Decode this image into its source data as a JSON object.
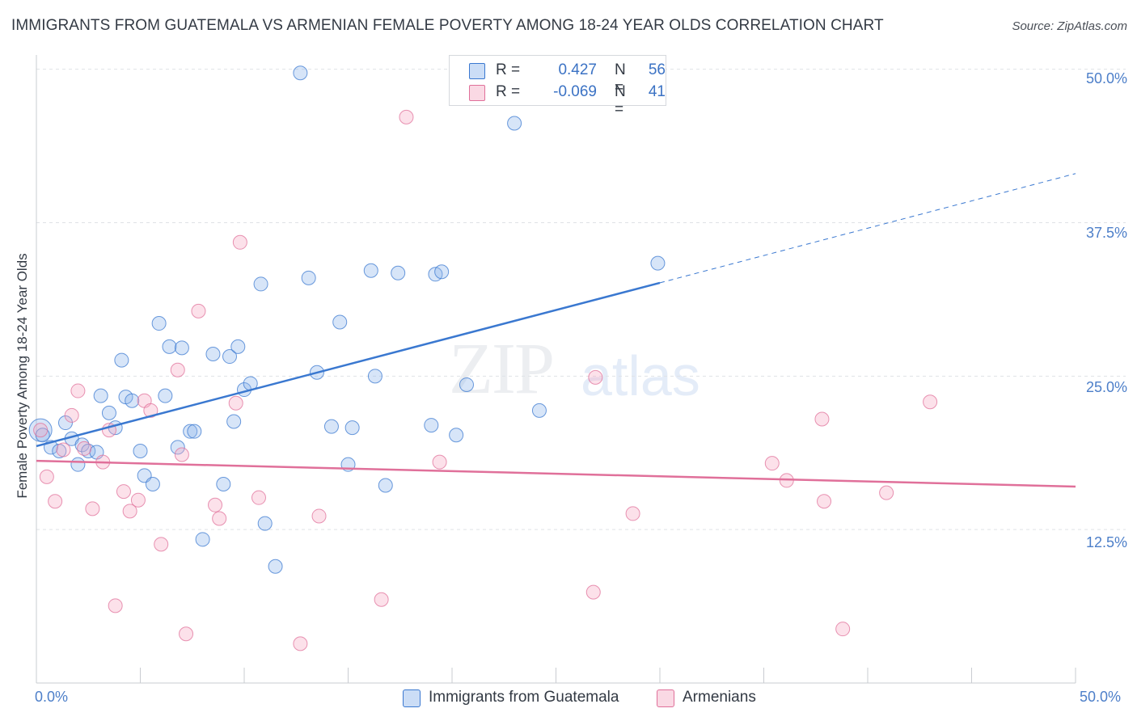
{
  "title": "IMMIGRANTS FROM GUATEMALA VS ARMENIAN FEMALE POVERTY AMONG 18-24 YEAR OLDS CORRELATION CHART",
  "source": "Source: ZipAtlas.com",
  "watermark": {
    "zip": "ZIP",
    "atlas": "atlas"
  },
  "legend_top": {
    "rows": [
      {
        "r_label": "R =",
        "r_value": "0.427",
        "n_label": "N =",
        "n_value": "56"
      },
      {
        "r_label": "R =",
        "r_value": "-0.069",
        "n_label": "N =",
        "n_value": "41"
      }
    ]
  },
  "legend_bottom": [
    "Immigrants from Guatemala",
    "Armenians"
  ],
  "chart_data": {
    "type": "scatter",
    "ylabel": "Female Poverty Among 18-24 Year Olds",
    "xlabel": "",
    "x_tick_labels": [
      "0.0%",
      "50.0%"
    ],
    "y_tick_labels": [
      "50.0%",
      "37.5%",
      "25.0%",
      "12.5%"
    ],
    "xlim": [
      0,
      50
    ],
    "ylim": [
      0,
      50.9
    ],
    "grid": true,
    "colors": {
      "blue": "#3a78d0",
      "pink": "#e0709a",
      "blue_fill": "rgba(140,180,235,0.35)",
      "pink_fill": "rgba(245,170,195,0.35)"
    },
    "series": [
      {
        "name": "Immigrants from Guatemala",
        "color": "#3a78d0",
        "trend": {
          "x0": 0,
          "y0": 19.3,
          "x1": 30,
          "y1": 32.6,
          "dash_to_x": 50,
          "dash_to_y": 41.5
        },
        "points": [
          [
            0.2,
            20.6
          ],
          [
            0.3,
            20.2
          ],
          [
            0.7,
            19.2
          ],
          [
            1.1,
            18.9
          ],
          [
            1.4,
            21.2
          ],
          [
            1.7,
            19.9
          ],
          [
            2.0,
            17.8
          ],
          [
            2.2,
            19.4
          ],
          [
            2.5,
            18.9
          ],
          [
            2.9,
            18.8
          ],
          [
            3.1,
            23.4
          ],
          [
            3.5,
            22.0
          ],
          [
            3.8,
            20.8
          ],
          [
            4.1,
            26.3
          ],
          [
            4.3,
            23.3
          ],
          [
            4.6,
            23.0
          ],
          [
            5.0,
            18.9
          ],
          [
            5.2,
            16.9
          ],
          [
            5.6,
            16.2
          ],
          [
            5.9,
            29.3
          ],
          [
            6.2,
            23.4
          ],
          [
            6.4,
            27.4
          ],
          [
            6.8,
            19.2
          ],
          [
            7.0,
            27.3
          ],
          [
            7.4,
            20.5
          ],
          [
            7.6,
            20.5
          ],
          [
            8.0,
            11.7
          ],
          [
            8.5,
            26.8
          ],
          [
            9.0,
            16.2
          ],
          [
            9.3,
            26.6
          ],
          [
            9.5,
            21.3
          ],
          [
            9.7,
            27.4
          ],
          [
            10.0,
            23.9
          ],
          [
            10.3,
            24.4
          ],
          [
            10.8,
            32.5
          ],
          [
            11.0,
            13.0
          ],
          [
            11.5,
            9.5
          ],
          [
            12.7,
            49.7
          ],
          [
            13.1,
            33.0
          ],
          [
            13.5,
            25.3
          ],
          [
            14.2,
            20.9
          ],
          [
            14.6,
            29.4
          ],
          [
            15.0,
            17.8
          ],
          [
            15.2,
            20.8
          ],
          [
            16.1,
            33.6
          ],
          [
            16.3,
            25.0
          ],
          [
            16.8,
            16.1
          ],
          [
            17.4,
            33.4
          ],
          [
            19.0,
            21.0
          ],
          [
            19.2,
            33.3
          ],
          [
            19.5,
            33.5
          ],
          [
            20.2,
            20.2
          ],
          [
            20.7,
            24.3
          ],
          [
            23.0,
            45.6
          ],
          [
            24.2,
            22.2
          ],
          [
            29.9,
            34.2
          ]
        ]
      },
      {
        "name": "Armenians",
        "color": "#e0709a",
        "trend": {
          "x0": 0,
          "y0": 18.1,
          "x1": 50,
          "y1": 16.0
        },
        "points": [
          [
            0.2,
            20.6
          ],
          [
            0.5,
            16.8
          ],
          [
            0.9,
            14.8
          ],
          [
            1.3,
            19.0
          ],
          [
            1.7,
            21.8
          ],
          [
            2.0,
            23.8
          ],
          [
            2.3,
            19.1
          ],
          [
            2.7,
            14.2
          ],
          [
            3.2,
            18.0
          ],
          [
            3.5,
            20.6
          ],
          [
            3.8,
            6.3
          ],
          [
            4.2,
            15.6
          ],
          [
            4.5,
            14.0
          ],
          [
            4.9,
            14.9
          ],
          [
            5.2,
            23.0
          ],
          [
            5.5,
            22.2
          ],
          [
            6.0,
            11.3
          ],
          [
            6.8,
            25.5
          ],
          [
            7.0,
            18.6
          ],
          [
            7.2,
            4.0
          ],
          [
            7.8,
            30.3
          ],
          [
            8.6,
            14.5
          ],
          [
            8.8,
            13.4
          ],
          [
            9.6,
            22.8
          ],
          [
            9.8,
            35.9
          ],
          [
            10.7,
            15.1
          ],
          [
            12.7,
            3.2
          ],
          [
            13.6,
            13.6
          ],
          [
            16.6,
            6.8
          ],
          [
            17.8,
            46.1
          ],
          [
            19.4,
            18.0
          ],
          [
            26.8,
            7.4
          ],
          [
            26.9,
            24.9
          ],
          [
            28.7,
            13.8
          ],
          [
            35.4,
            17.9
          ],
          [
            36.1,
            16.5
          ],
          [
            37.8,
            21.5
          ],
          [
            37.9,
            14.8
          ],
          [
            38.8,
            4.4
          ],
          [
            40.9,
            15.5
          ],
          [
            43.0,
            22.9
          ]
        ]
      }
    ]
  }
}
